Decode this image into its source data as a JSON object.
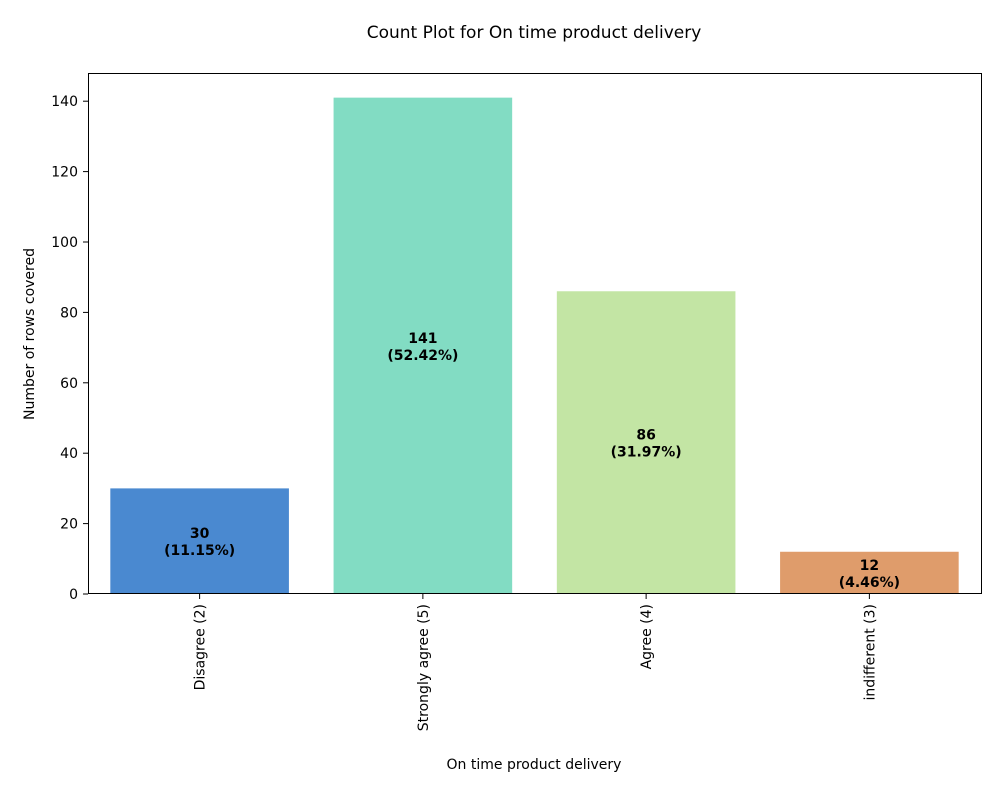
{
  "chart_data": {
    "type": "bar",
    "title": "Count Plot for On time product delivery",
    "xlabel": "On time product delivery",
    "ylabel": "Number of rows covered",
    "categories": [
      "Disagree (2)",
      "Strongly agree (5)",
      "Agree (4)",
      "indifferent  (3)"
    ],
    "values": [
      30,
      141,
      86,
      12
    ],
    "percent_labels": [
      "(11.15%)",
      "(52.42%)",
      "(31.97%)",
      "(4.46%)"
    ],
    "colors": [
      "#4a89d0",
      "#82dcc3",
      "#c3e5a4",
      "#df9c6b"
    ],
    "ylim": [
      0,
      148
    ],
    "yticks": [
      0,
      20,
      40,
      60,
      80,
      100,
      120,
      140
    ],
    "grid": false,
    "legend": "none"
  }
}
